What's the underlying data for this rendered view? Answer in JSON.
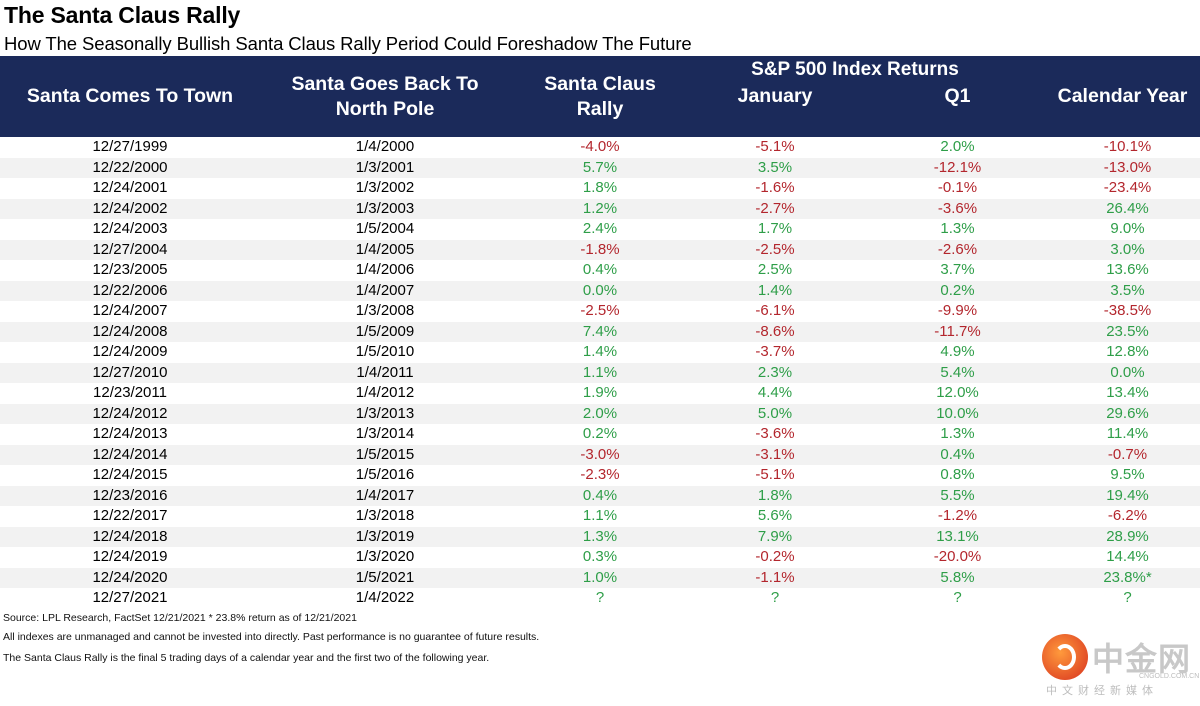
{
  "title": "The Santa Claus Rally",
  "subtitle": "How The Seasonally Bullish Santa Claus Rally Period Could Foreshadow The Future",
  "header": {
    "group_label": "S&P 500 Index Returns",
    "col1": "Santa Comes To Town",
    "col2_line1": "Santa Goes Back To",
    "col2_line2": "North Pole",
    "col3_line1": "Santa Claus",
    "col3_line2": "Rally",
    "col4": "January",
    "col5": "Q1",
    "col6": "Calendar Year"
  },
  "colors": {
    "header_bg": "#1b2a5a",
    "positive": "#2e9e48",
    "negative": "#b3262d",
    "stripe": "#f2f2f2"
  },
  "rows": [
    {
      "start": "12/27/1999",
      "end": "1/4/2000",
      "rally": "-4.0%",
      "jan": "-5.1%",
      "q1": "2.0%",
      "year": "-10.1%"
    },
    {
      "start": "12/22/2000",
      "end": "1/3/2001",
      "rally": "5.7%",
      "jan": "3.5%",
      "q1": "-12.1%",
      "year": "-13.0%"
    },
    {
      "start": "12/24/2001",
      "end": "1/3/2002",
      "rally": "1.8%",
      "jan": "-1.6%",
      "q1": "-0.1%",
      "year": "-23.4%"
    },
    {
      "start": "12/24/2002",
      "end": "1/3/2003",
      "rally": "1.2%",
      "jan": "-2.7%",
      "q1": "-3.6%",
      "year": "26.4%"
    },
    {
      "start": "12/24/2003",
      "end": "1/5/2004",
      "rally": "2.4%",
      "jan": "1.7%",
      "q1": "1.3%",
      "year": "9.0%"
    },
    {
      "start": "12/27/2004",
      "end": "1/4/2005",
      "rally": "-1.8%",
      "jan": "-2.5%",
      "q1": "-2.6%",
      "year": "3.0%"
    },
    {
      "start": "12/23/2005",
      "end": "1/4/2006",
      "rally": "0.4%",
      "jan": "2.5%",
      "q1": "3.7%",
      "year": "13.6%"
    },
    {
      "start": "12/22/2006",
      "end": "1/4/2007",
      "rally": "0.0%",
      "jan": "1.4%",
      "q1": "0.2%",
      "year": "3.5%"
    },
    {
      "start": "12/24/2007",
      "end": "1/3/2008",
      "rally": "-2.5%",
      "jan": "-6.1%",
      "q1": "-9.9%",
      "year": "-38.5%"
    },
    {
      "start": "12/24/2008",
      "end": "1/5/2009",
      "rally": "7.4%",
      "jan": "-8.6%",
      "q1": "-11.7%",
      "year": "23.5%"
    },
    {
      "start": "12/24/2009",
      "end": "1/5/2010",
      "rally": "1.4%",
      "jan": "-3.7%",
      "q1": "4.9%",
      "year": "12.8%"
    },
    {
      "start": "12/27/2010",
      "end": "1/4/2011",
      "rally": "1.1%",
      "jan": "2.3%",
      "q1": "5.4%",
      "year": "0.0%"
    },
    {
      "start": "12/23/2011",
      "end": "1/4/2012",
      "rally": "1.9%",
      "jan": "4.4%",
      "q1": "12.0%",
      "year": "13.4%"
    },
    {
      "start": "12/24/2012",
      "end": "1/3/2013",
      "rally": "2.0%",
      "jan": "5.0%",
      "q1": "10.0%",
      "year": "29.6%"
    },
    {
      "start": "12/24/2013",
      "end": "1/3/2014",
      "rally": "0.2%",
      "jan": "-3.6%",
      "q1": "1.3%",
      "year": "11.4%"
    },
    {
      "start": "12/24/2014",
      "end": "1/5/2015",
      "rally": "-3.0%",
      "jan": "-3.1%",
      "q1": "0.4%",
      "year": "-0.7%"
    },
    {
      "start": "12/24/2015",
      "end": "1/5/2016",
      "rally": "-2.3%",
      "jan": "-5.1%",
      "q1": "0.8%",
      "year": "9.5%"
    },
    {
      "start": "12/23/2016",
      "end": "1/4/2017",
      "rally": "0.4%",
      "jan": "1.8%",
      "q1": "5.5%",
      "year": "19.4%"
    },
    {
      "start": "12/22/2017",
      "end": "1/3/2018",
      "rally": "1.1%",
      "jan": "5.6%",
      "q1": "-1.2%",
      "year": "-6.2%"
    },
    {
      "start": "12/24/2018",
      "end": "1/3/2019",
      "rally": "1.3%",
      "jan": "7.9%",
      "q1": "13.1%",
      "year": "28.9%"
    },
    {
      "start": "12/24/2019",
      "end": "1/3/2020",
      "rally": "0.3%",
      "jan": "-0.2%",
      "q1": "-20.0%",
      "year": "14.4%"
    },
    {
      "start": "12/24/2020",
      "end": "1/5/2021",
      "rally": "1.0%",
      "jan": "-1.1%",
      "q1": "5.8%",
      "year": "23.8%*"
    },
    {
      "start": "12/27/2021",
      "end": "1/4/2022",
      "rally": "?",
      "jan": "?",
      "q1": "?",
      "year": "?"
    }
  ],
  "footnotes": {
    "source": "Source: LPL Research, FactSet 12/21/2021  * 23.8% return as of 12/21/2021",
    "disclaimer": "All indexes are unmanaged and cannot be invested into directly. Past performance is no guarantee of future results.",
    "definition": "The Santa Claus Rally is the final 5 trading days of a calendar year and the first two of the following year."
  },
  "logo": {
    "name": "中金网",
    "url": "CNGOLD.COM.CN",
    "tagline": "中文财经新媒体",
    "icon": "cngold-logo-icon"
  }
}
